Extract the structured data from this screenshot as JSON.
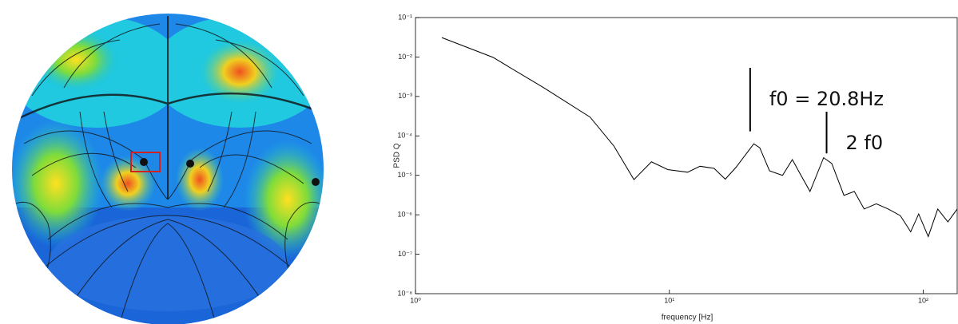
{
  "chart_data": {
    "type": "line",
    "xlabel": "frequency [Hz]",
    "ylabel": "PSD Q",
    "xscale": "log",
    "yscale": "log",
    "xlim": [
      1,
      136
    ],
    "ylim": [
      1e-08,
      0.1
    ],
    "xticks": [
      {
        "value": 1,
        "label": "10⁰"
      },
      {
        "value": 10,
        "label": "10¹"
      },
      {
        "value": 100,
        "label": "10²"
      }
    ],
    "yticks": [
      {
        "value": 1e-08,
        "label": "10⁻⁸"
      },
      {
        "value": 1e-07,
        "label": "10⁻⁷"
      },
      {
        "value": 1e-06,
        "label": "10⁻⁶"
      },
      {
        "value": 1e-05,
        "label": "10⁻⁵"
      },
      {
        "value": 0.0001,
        "label": "10⁻⁴"
      },
      {
        "value": 0.001,
        "label": "10⁻³"
      },
      {
        "value": 0.01,
        "label": "10⁻²"
      },
      {
        "value": 0.1,
        "label": "10⁻¹"
      }
    ],
    "color": "#000000",
    "x": [
      1.27,
      2.02,
      3.2,
      4.87,
      6.05,
      7.25,
      8.5,
      9.85,
      11.8,
      13.2,
      15,
      16.6,
      18.3,
      21.5,
      22.7,
      24.8,
      27.9,
      30.5,
      32.7,
      35.8,
      40.5,
      43.6,
      48.7,
      53.5,
      58.5,
      65.3,
      72.8,
      81.2,
      89.2,
      95.9,
      104.6,
      114,
      125,
      136
    ],
    "values": [
      0.031,
      0.0098,
      0.00166,
      0.0003,
      5.5e-05,
      7.8e-06,
      2.2e-05,
      1.4e-05,
      1.2e-05,
      1.7e-05,
      1.5e-05,
      8e-06,
      1.6e-05,
      6.3e-05,
      5e-05,
      1.3e-05,
      1e-05,
      2.5e-05,
      1.1e-05,
      3.9e-06,
      2.8e-05,
      2e-05,
      3.1e-06,
      3.9e-06,
      1.4e-06,
      1.9e-06,
      1.4e-06,
      9.5e-07,
      3.7e-07,
      1.05e-06,
      2.8e-07,
      1.4e-06,
      6.6e-07,
      1.4e-06
    ],
    "annotations": [
      {
        "text": "f0 = 20.8Hz",
        "x": 20.8,
        "y_from": 0.00013,
        "y_to": 0.0053
      },
      {
        "text": "2 f0",
        "x": 41.6,
        "y_from": 3.6e-05,
        "y_to": 0.00041
      }
    ]
  }
}
